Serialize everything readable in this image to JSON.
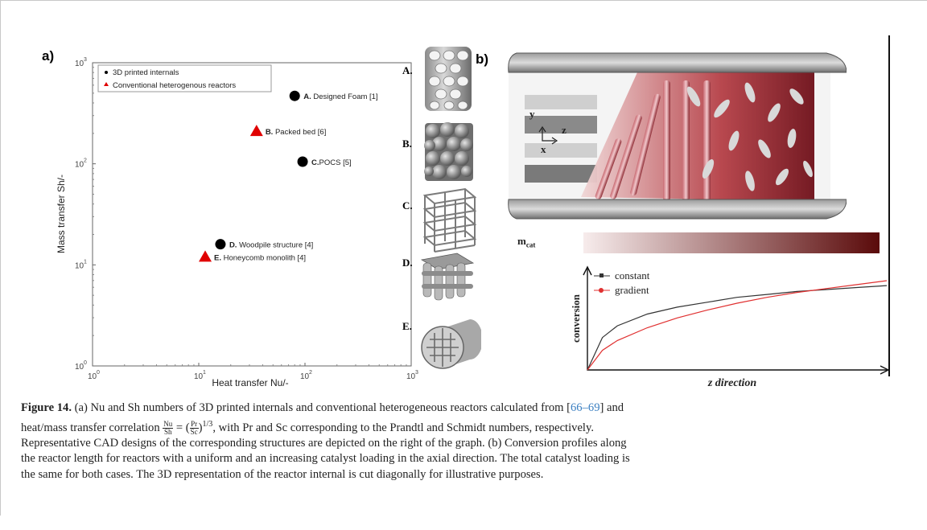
{
  "panel_a_label": "a)",
  "panel_b_label": "b)",
  "chart_data": [
    {
      "type": "scatter",
      "xscale": "log",
      "yscale": "log",
      "xlim": [
        1,
        1000
      ],
      "ylim": [
        1,
        1000
      ],
      "xlabel": "Heat transfer Nu/-",
      "ylabel": "Mass transfer Sh/-",
      "xticks": [
        "10^0",
        "10^1",
        "10^2",
        "10^3"
      ],
      "yticks": [
        "10^0",
        "10^1",
        "10^2",
        "10^3"
      ],
      "legend": {
        "position": "top-left",
        "entries": [
          "3D printed internals",
          "Conventional heterogenous reactors"
        ]
      },
      "series": [
        {
          "name": "3D printed internals",
          "marker": "circle",
          "color": "#000000",
          "points": [
            {
              "label": "A. Designed Foam [1]",
              "x": 80,
              "y": 470
            },
            {
              "label": "C.POCS [5]",
              "x": 95,
              "y": 105
            },
            {
              "label": "D. Woodpile structure [4]",
              "x": 16,
              "y": 16
            }
          ]
        },
        {
          "name": "Conventional heterogenous reactors",
          "marker": "triangle",
          "color": "#e00000",
          "points": [
            {
              "label": "B. Packed bed [6]",
              "x": 35,
              "y": 210
            },
            {
              "label": "E. Honeycomb monolith [4]",
              "x": 11.5,
              "y": 12
            }
          ]
        }
      ]
    },
    {
      "type": "line",
      "xlabel": "z direction",
      "ylabel": "conversion",
      "series": [
        {
          "name": "constant",
          "color": "#333333",
          "marker": "square",
          "x": [
            0,
            0.05,
            0.1,
            0.2,
            0.3,
            0.4,
            0.5,
            0.6,
            0.7,
            0.8,
            0.9,
            1.0
          ],
          "y": [
            0,
            0.33,
            0.45,
            0.57,
            0.64,
            0.69,
            0.74,
            0.77,
            0.8,
            0.82,
            0.84,
            0.86
          ]
        },
        {
          "name": "gradient",
          "color": "#e03030",
          "marker": "circle",
          "x": [
            0,
            0.05,
            0.1,
            0.2,
            0.3,
            0.4,
            0.5,
            0.6,
            0.7,
            0.8,
            0.9,
            1.0
          ],
          "y": [
            0,
            0.2,
            0.3,
            0.43,
            0.53,
            0.61,
            0.68,
            0.74,
            0.79,
            0.83,
            0.87,
            0.91
          ]
        }
      ]
    }
  ],
  "cad_labels": [
    "A.",
    "B.",
    "C.",
    "D.",
    "E."
  ],
  "reactor": {
    "axis_y": "y",
    "axis_z": "z",
    "axis_x": "x",
    "mcat_main": "m",
    "mcat_sub": "cat",
    "gradient_start": "#f7ecec",
    "gradient_end": "#5a0a0a"
  },
  "caption": {
    "fig_label": "Figure 14.",
    "p1": " (a) Nu and Sh numbers of 3D printed internals and conventional heterogeneous reactors calculated from [",
    "ref": "66–69",
    "p2": "] and",
    "p3": "heat/mass transfer correlation ",
    "frac1_num": "Nu",
    "frac1_den": "Sh",
    "eq": " = (",
    "frac2_num": "Pr",
    "frac2_den": "Sc",
    "exp": "1/3",
    "p4": ", with Pr and Sc corresponding to the Prandtl and Schmidt numbers, respectively.",
    "line3": "Representative CAD designs of the corresponding structures are depicted on the right of the graph. (b) Conversion profiles along",
    "line4": "the reactor length for reactors with a uniform and an increasing catalyst loading in the axial direction. The total catalyst loading is",
    "line5": "the same for both cases. The 3D representation of the reactor internal is cut diagonally for illustrative purposes."
  }
}
